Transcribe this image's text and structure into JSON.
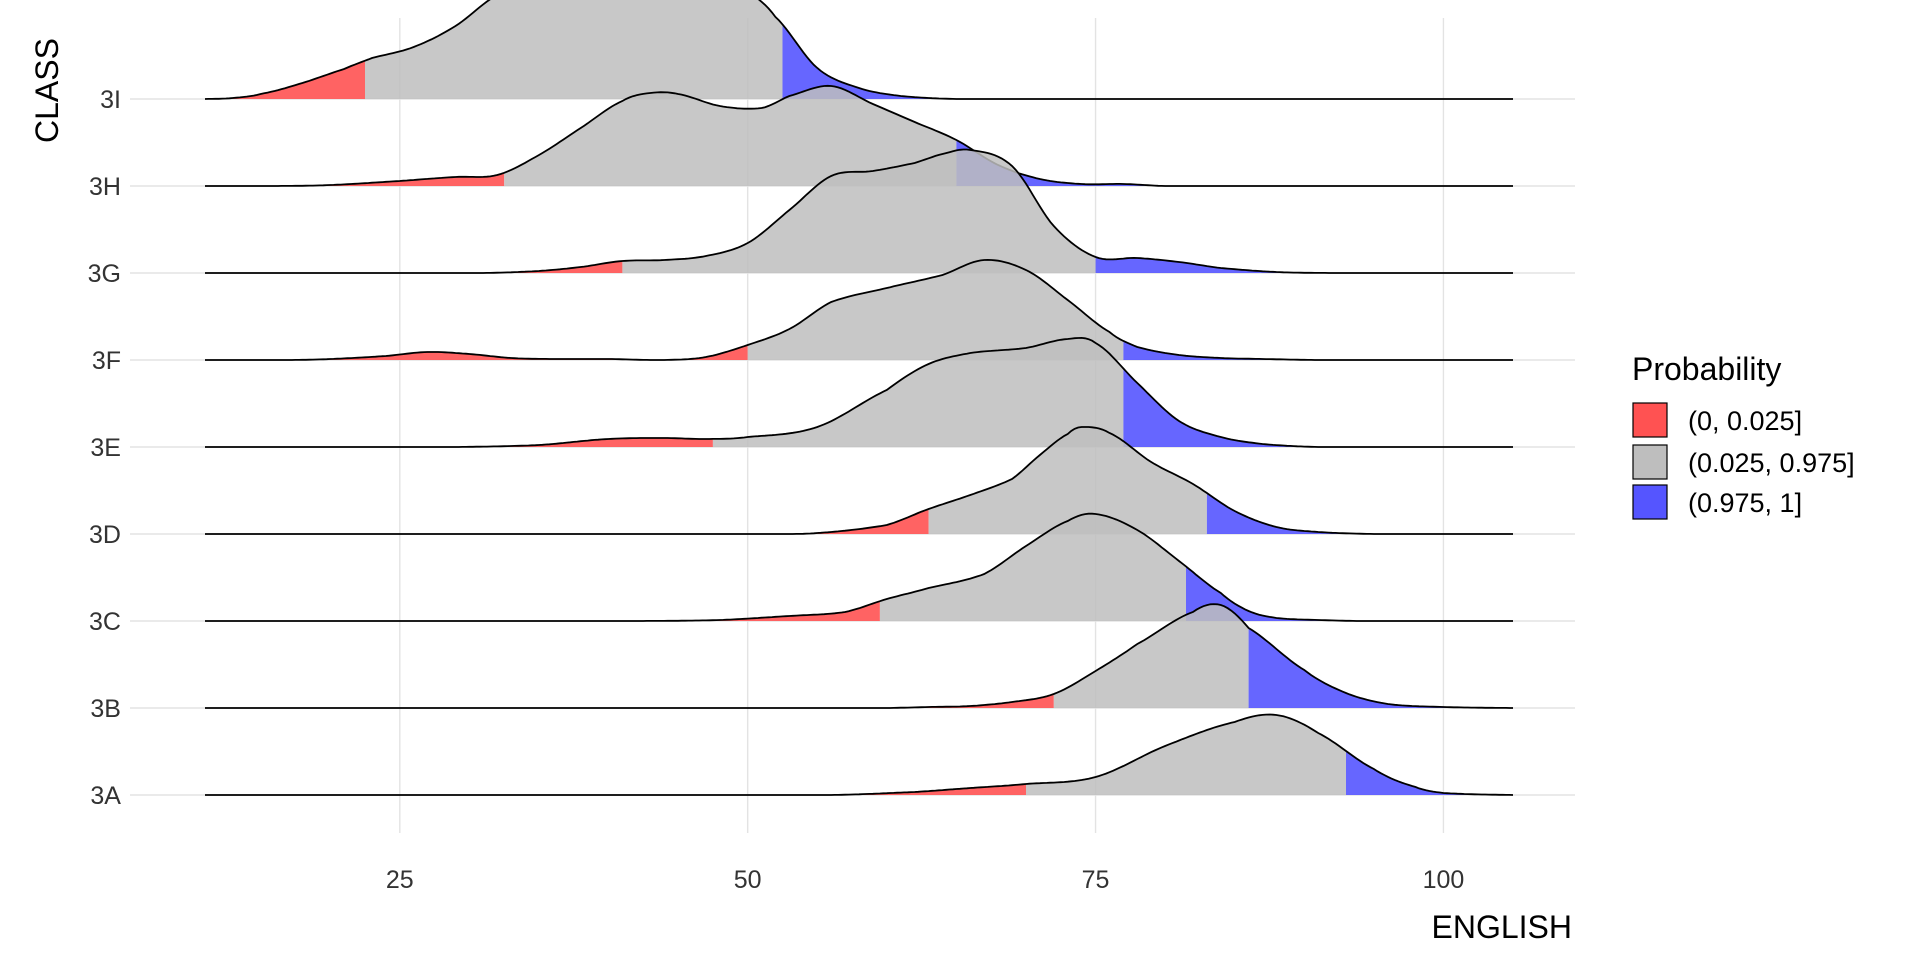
{
  "chart_data": {
    "type": "area",
    "subtype": "ridgeline-density",
    "xlabel": "ENGLISH",
    "ylabel": "CLASS",
    "xlim": [
      11,
      105
    ],
    "xticks": [
      25,
      50,
      75,
      100
    ],
    "grid": true,
    "categories": [
      "3A",
      "3B",
      "3C",
      "3D",
      "3E",
      "3F",
      "3G",
      "3H",
      "3I"
    ],
    "quantile_colors": {
      "low": "#ff5252",
      "mid": "#bebebe",
      "high": "#5555ff"
    },
    "legend": {
      "title": "Probability",
      "position": "right",
      "entries": [
        {
          "label": "(0, 0.025]",
          "color_key": "low"
        },
        {
          "label": "(0.025, 0.975]",
          "color_key": "mid"
        },
        {
          "label": "(0.975, 1]",
          "color_key": "high"
        }
      ]
    },
    "series": [
      {
        "name": "3A",
        "q_low": 70,
        "q_high": 93,
        "density_x": [
          11,
          56,
          62,
          66,
          70,
          75,
          80,
          85,
          88,
          91,
          95,
          98,
          100,
          105
        ],
        "density_y": [
          0,
          0,
          0.03,
          0.07,
          0.11,
          0.18,
          0.49,
          0.73,
          0.8,
          0.62,
          0.26,
          0.08,
          0.02,
          0
        ]
      },
      {
        "name": "3B",
        "q_low": 72,
        "q_high": 86,
        "density_x": [
          11,
          60,
          63,
          66,
          69,
          72,
          75,
          78,
          82,
          84,
          86,
          90,
          93,
          96,
          100,
          105
        ],
        "density_y": [
          0,
          0,
          0.01,
          0.02,
          0.06,
          0.14,
          0.37,
          0.64,
          0.96,
          1.03,
          0.8,
          0.38,
          0.15,
          0.04,
          0.01,
          0
        ]
      },
      {
        "name": "3C",
        "q_low": 59.5,
        "q_high": 81.5,
        "density_x": [
          11,
          42,
          48,
          53,
          57,
          60,
          63,
          67,
          70,
          73,
          75,
          78,
          81,
          84,
          86,
          88,
          91,
          94,
          105
        ],
        "density_y": [
          0,
          0,
          0.01,
          0.05,
          0.09,
          0.22,
          0.33,
          0.47,
          0.75,
          1.0,
          1.07,
          0.91,
          0.6,
          0.28,
          0.1,
          0.03,
          0.01,
          0,
          0
        ]
      },
      {
        "name": "3D",
        "q_low": 63,
        "q_high": 83,
        "density_x": [
          11,
          51,
          55,
          60,
          63,
          66,
          69,
          71,
          73,
          74,
          76,
          79,
          82,
          85,
          88,
          91,
          95,
          105
        ],
        "density_y": [
          0,
          0,
          0.01,
          0.09,
          0.25,
          0.39,
          0.55,
          0.79,
          1.0,
          1.07,
          1.01,
          0.72,
          0.5,
          0.23,
          0.07,
          0.02,
          0,
          0
        ]
      },
      {
        "name": "3E",
        "q_low": 47.5,
        "q_high": 77,
        "density_x": [
          11,
          29,
          35,
          40,
          44,
          47,
          50,
          55,
          60,
          63,
          66,
          70,
          73,
          75,
          78,
          81,
          84,
          87,
          91,
          105
        ],
        "density_y": [
          0,
          0,
          0.02,
          0.08,
          0.09,
          0.08,
          0.1,
          0.2,
          0.57,
          0.83,
          0.94,
          0.99,
          1.08,
          1.04,
          0.64,
          0.26,
          0.1,
          0.03,
          0,
          0
        ]
      },
      {
        "name": "3F",
        "q_low": 50,
        "q_high": 77,
        "density_x": [
          11,
          17,
          20,
          24,
          27,
          30,
          33,
          36,
          40,
          44,
          47,
          50,
          53,
          56,
          60,
          64,
          67,
          70,
          73,
          76,
          78,
          81,
          84,
          87,
          91,
          105
        ],
        "density_y": [
          0,
          0,
          0.01,
          0.04,
          0.08,
          0.06,
          0.02,
          0.01,
          0.01,
          0,
          0.03,
          0.15,
          0.31,
          0.58,
          0.72,
          0.85,
          1.0,
          0.9,
          0.6,
          0.28,
          0.13,
          0.05,
          0.02,
          0.01,
          0,
          0
        ]
      },
      {
        "name": "3G",
        "q_low": 41,
        "q_high": 75,
        "density_x": [
          11,
          31,
          35,
          38,
          41,
          44,
          47,
          50,
          53,
          56,
          59,
          62,
          64,
          66,
          69,
          72,
          75,
          78,
          81,
          84,
          88,
          92,
          105
        ],
        "density_y": [
          0,
          0,
          0.02,
          0.06,
          0.12,
          0.13,
          0.17,
          0.3,
          0.63,
          0.97,
          1.02,
          1.1,
          1.19,
          1.23,
          1.07,
          0.47,
          0.16,
          0.15,
          0.11,
          0.05,
          0.01,
          0,
          0
        ]
      },
      {
        "name": "3H",
        "q_low": 32.5,
        "q_high": 65,
        "density_x": [
          11,
          16,
          20,
          25,
          29,
          32,
          35,
          38,
          41,
          43,
          45,
          48,
          51,
          53,
          56,
          59,
          62,
          65,
          68,
          71,
          74,
          77,
          80,
          85,
          105
        ],
        "density_y": [
          0,
          0,
          0.01,
          0.05,
          0.09,
          0.11,
          0.31,
          0.58,
          0.85,
          0.93,
          0.92,
          0.8,
          0.78,
          0.9,
          1.0,
          0.82,
          0.64,
          0.46,
          0.21,
          0.07,
          0.02,
          0.02,
          0,
          0,
          0
        ]
      },
      {
        "name": "3I",
        "q_low": 22.5,
        "q_high": 52.5,
        "density_x": [
          11,
          13,
          15,
          18,
          21,
          23,
          26,
          29,
          32,
          35,
          38,
          41,
          44,
          47,
          50,
          52,
          55,
          58,
          61,
          65,
          105
        ],
        "density_y": [
          0,
          0.01,
          0.05,
          0.16,
          0.3,
          0.41,
          0.52,
          0.73,
          1.04,
          1.16,
          1.23,
          1.2,
          1.16,
          1.14,
          1.07,
          0.82,
          0.31,
          0.11,
          0.03,
          0,
          0
        ]
      }
    ]
  }
}
